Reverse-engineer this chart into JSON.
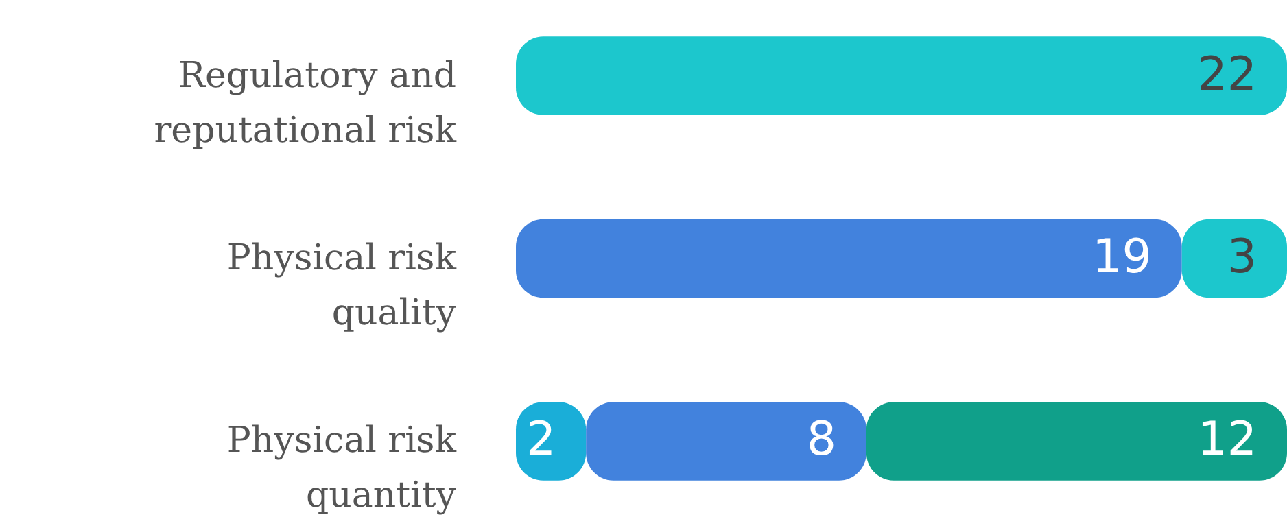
{
  "chart_data": {
    "type": "bar",
    "orientation": "horizontal",
    "stacked": true,
    "data_labels": true,
    "categories": [
      "Regulatory and reputational risk",
      "Physical risk quality",
      "Physical risk quantity"
    ],
    "series": [
      {
        "color": "#1aaed8",
        "values": [
          null,
          null,
          2
        ]
      },
      {
        "color": "#4282dd",
        "values": [
          null,
          19,
          8
        ]
      },
      {
        "color": "#1cc7cd",
        "values": [
          22,
          3,
          null
        ]
      },
      {
        "color": "#10a08a",
        "values": [
          null,
          null,
          12
        ]
      }
    ]
  }
}
